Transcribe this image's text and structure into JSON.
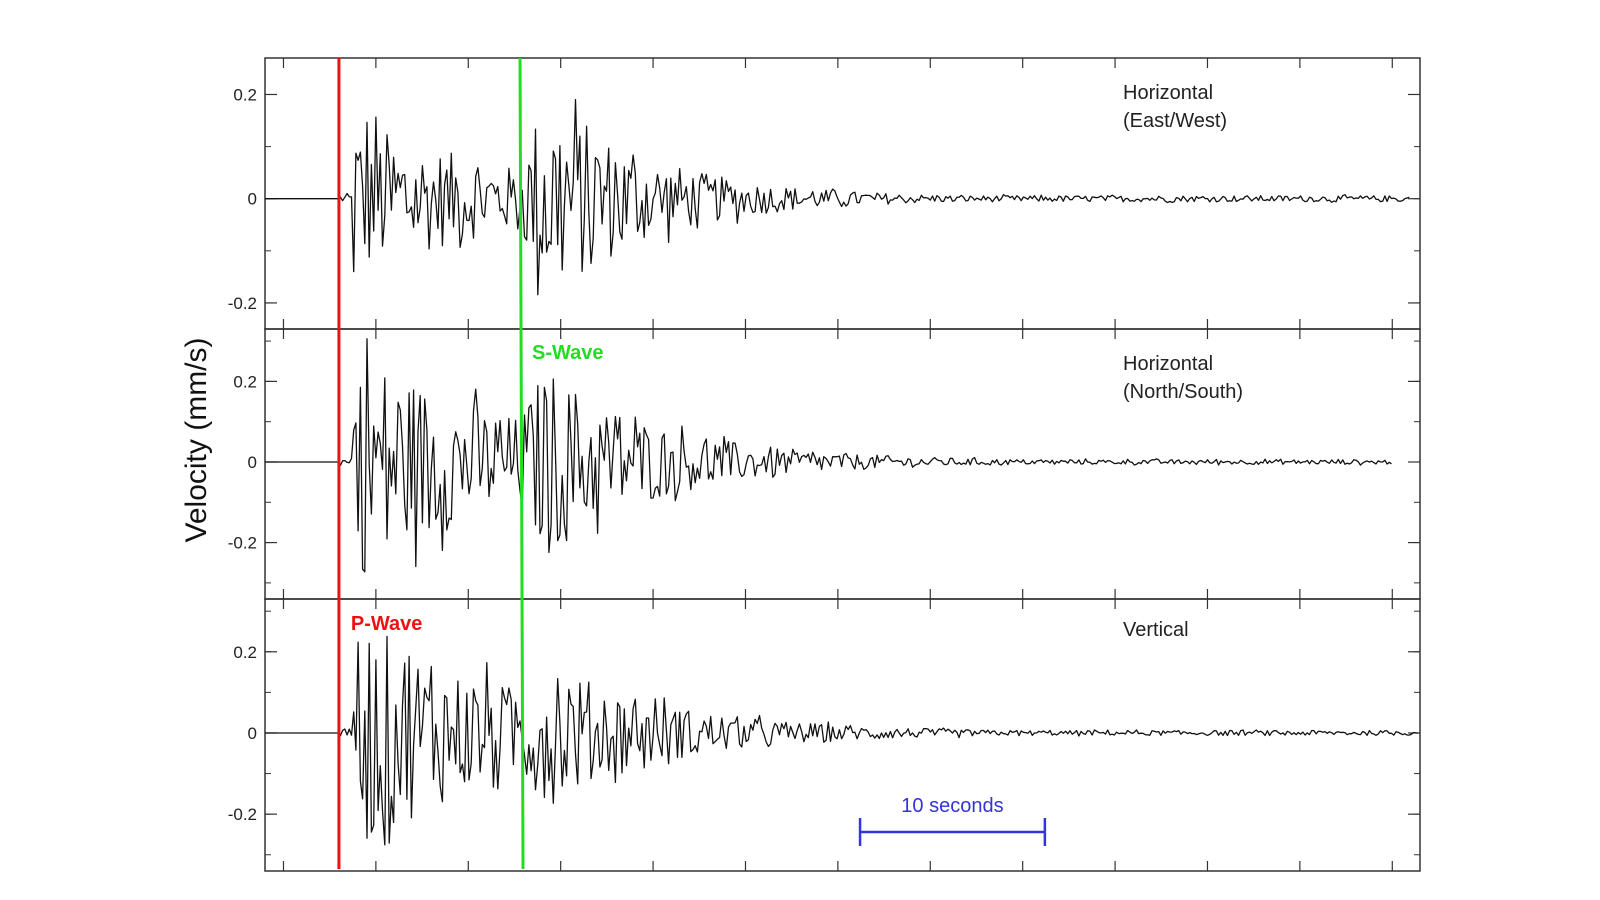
{
  "chart_data": {
    "type": "line",
    "ylabel": "Velocity (mm/s)",
    "xlabel": "",
    "x_unit": "seconds",
    "x_range": [
      -4,
      58.5
    ],
    "panels": [
      {
        "name": "Horizontal\n(East/West)",
        "label_lines": [
          "Horizontal",
          "(East/West)"
        ],
        "ylim": [
          -0.25,
          0.27
        ],
        "yticks": [
          -0.2,
          0,
          0.2
        ],
        "tick_labels": [
          "-0.2",
          "0",
          "0.2"
        ],
        "amplitude": {
          "p": 0.16,
          "s": 0.22
        },
        "end_x": 58.0
      },
      {
        "name": "Horizontal\n(North/South)",
        "label_lines": [
          "Horizontal",
          "(North/South)"
        ],
        "ylim": [
          -0.34,
          0.33
        ],
        "yticks": [
          -0.2,
          0,
          0.2
        ],
        "tick_labels": [
          "-0.2",
          "0",
          "0.2"
        ],
        "amplitude": {
          "p": 0.3,
          "s": 0.2
        },
        "end_x": 57.0
      },
      {
        "name": "Vertical",
        "label_lines": [
          "Vertical"
        ],
        "ylim": [
          -0.34,
          0.33
        ],
        "yticks": [
          -0.2,
          0,
          0.2
        ],
        "tick_labels": [
          "-0.2",
          "0",
          "0.2"
        ],
        "amplitude": {
          "p": 0.3,
          "s": 0.12
        },
        "end_x": 58.5
      }
    ],
    "markers": [
      {
        "label": "P-Wave",
        "x": 0,
        "color": "#ee1111"
      },
      {
        "label": "S-Wave",
        "x": 9.8,
        "color": "#22dd22"
      }
    ],
    "scale_bar": {
      "label": "10 seconds",
      "start": 28.2,
      "length": 10,
      "color": "#3333dd"
    }
  }
}
